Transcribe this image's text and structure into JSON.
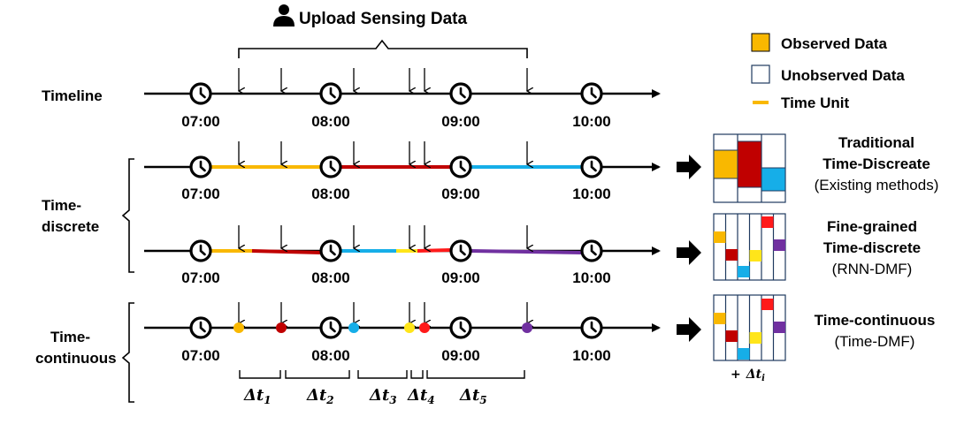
{
  "header": {
    "upload_label": "Upload Sensing Data",
    "person_icon": "person-icon"
  },
  "legend": {
    "observed": "Observed Data",
    "unobserved": "Unobserved Data",
    "time_unit": "Time Unit",
    "colors": {
      "observed": "#f9b800",
      "time_unit": "#f9b800"
    }
  },
  "rows": {
    "timeline": "Timeline",
    "time_discrete_line1": "Time-",
    "time_discrete_line2": "discrete",
    "time_continuous_line1": "Time-",
    "time_continuous_line2": "continuous"
  },
  "times": [
    "07:00",
    "08:00",
    "09:00",
    "10:00"
  ],
  "methods": {
    "traditional_line1": "Traditional",
    "traditional_line2": "Time-Discreate",
    "traditional_line3": "(Existing methods)",
    "fine_line1": "Fine-grained",
    "fine_line2": "Time-discrete",
    "fine_line3": "(RNN-DMF)",
    "continuous_line1": "Time-continuous",
    "continuous_line2": "(Time-DMF)"
  },
  "intervals": {
    "delta": "Δt",
    "subscripts": [
      "1",
      "2",
      "3",
      "4",
      "5"
    ],
    "plus": "+",
    "delta_i": "i"
  },
  "palette": {
    "orange": "#f9b800",
    "red": "#c00000",
    "blue": "#16aee8",
    "yellow": "#ffe51a",
    "bright_red": "#ff1a1a",
    "purple": "#7030a0"
  }
}
